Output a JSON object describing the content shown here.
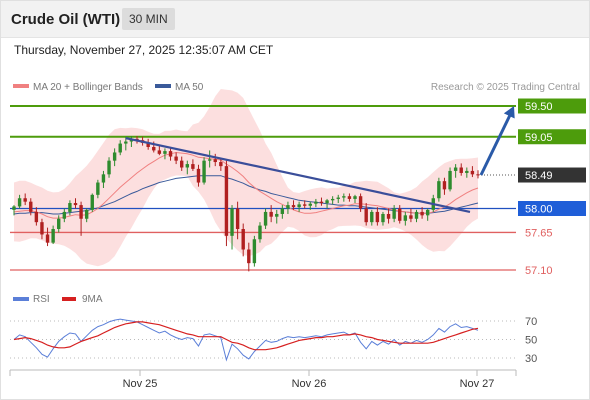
{
  "header": {
    "title": "Crude Oil (WTI)",
    "timeframe": "30 MIN"
  },
  "datetime": "Thursday, November 27, 2025 12:35:07 AM CET",
  "legend": {
    "ma20_label": "MA 20 + Bollinger Bands",
    "ma50_label": "MA 50",
    "credit": "Research © 2025 Trading Central"
  },
  "rsi_legend": {
    "rsi_label": "RSI",
    "ma_label": "9MA"
  },
  "colors": {
    "resistance": "#4d9c0c",
    "support": "#e06060",
    "pivot": "#2050c0",
    "trend": "#3a4e9a",
    "up": "#2e8b2e",
    "down": "#b02020",
    "ma20": "#f08080",
    "ma50": "#3a5a9a",
    "bands": "#fbd4d4",
    "current": "#333333",
    "rsi": "#5b7fd8",
    "rsi_ma": "#d62020"
  },
  "chart_data": [
    {
      "type": "candlestick",
      "title": "Crude Oil (WTI)",
      "timeframe": "30 MIN",
      "x_tick_labels": [
        "Nov 25",
        "Nov 26",
        "Nov 27"
      ],
      "levels": [
        {
          "value": 59.5,
          "label": "59.50",
          "kind": "resistance"
        },
        {
          "value": 59.05,
          "label": "59.05",
          "kind": "resistance"
        },
        {
          "value": 58.49,
          "label": "58.49",
          "kind": "current"
        },
        {
          "value": 58.0,
          "label": "58.00",
          "kind": "pivot"
        },
        {
          "value": 57.65,
          "label": "57.65",
          "kind": "support"
        },
        {
          "value": 57.1,
          "label": "57.10",
          "kind": "support"
        }
      ],
      "bias_arrow": {
        "from": 58.49,
        "to": 59.5,
        "direction": "up"
      },
      "downtrend_line": {
        "start": 59.03,
        "end": 57.95
      },
      "candles": [
        [
          57.98,
          58.05,
          57.9,
          58.03
        ],
        [
          58.03,
          58.2,
          58.0,
          58.15
        ],
        [
          58.15,
          58.22,
          58.05,
          58.1
        ],
        [
          58.1,
          58.15,
          57.9,
          57.95
        ],
        [
          57.95,
          58.02,
          57.75,
          57.8
        ],
        [
          57.8,
          57.85,
          57.55,
          57.62
        ],
        [
          57.62,
          57.72,
          57.45,
          57.5
        ],
        [
          57.5,
          57.75,
          57.48,
          57.7
        ],
        [
          57.7,
          57.9,
          57.65,
          57.85
        ],
        [
          57.85,
          58.0,
          57.8,
          57.95
        ],
        [
          57.95,
          58.12,
          57.9,
          58.08
        ],
        [
          58.08,
          58.15,
          58.0,
          58.05
        ],
        [
          58.05,
          58.1,
          57.6,
          57.85
        ],
        [
          57.85,
          58.0,
          57.8,
          57.98
        ],
        [
          57.98,
          58.22,
          57.95,
          58.2
        ],
        [
          58.2,
          58.42,
          58.15,
          58.38
        ],
        [
          58.38,
          58.55,
          58.3,
          58.5
        ],
        [
          58.5,
          58.75,
          58.45,
          58.7
        ],
        [
          58.7,
          58.88,
          58.62,
          58.82
        ],
        [
          58.82,
          59.0,
          58.78,
          58.95
        ],
        [
          58.95,
          59.05,
          58.85,
          58.98
        ],
        [
          58.98,
          59.06,
          58.9,
          59.02
        ],
        [
          59.02,
          59.06,
          58.95,
          59.0
        ],
        [
          59.0,
          59.05,
          58.92,
          58.96
        ],
        [
          58.96,
          59.02,
          58.86,
          58.9
        ],
        [
          58.9,
          58.98,
          58.82,
          58.85
        ],
        [
          58.85,
          58.92,
          58.78,
          58.8
        ],
        [
          58.8,
          58.88,
          58.72,
          58.84
        ],
        [
          58.84,
          58.9,
          58.7,
          58.76
        ],
        [
          58.76,
          58.82,
          58.65,
          58.7
        ],
        [
          58.7,
          58.76,
          58.55,
          58.6
        ],
        [
          58.6,
          58.7,
          58.5,
          58.65
        ],
        [
          58.65,
          58.72,
          58.55,
          58.58
        ],
        [
          58.58,
          58.64,
          58.32,
          58.38
        ],
        [
          58.38,
          58.75,
          58.35,
          58.7
        ],
        [
          58.7,
          58.85,
          58.6,
          58.72
        ],
        [
          58.72,
          58.8,
          58.62,
          58.68
        ],
        [
          58.68,
          58.74,
          58.55,
          58.62
        ],
        [
          58.62,
          58.7,
          57.45,
          57.6
        ],
        [
          57.6,
          58.05,
          57.4,
          58.0
        ],
        [
          58.0,
          58.1,
          57.55,
          57.7
        ],
        [
          57.7,
          57.78,
          57.3,
          57.4
        ],
        [
          57.4,
          57.5,
          57.08,
          57.2
        ],
        [
          57.2,
          57.6,
          57.15,
          57.55
        ],
        [
          57.55,
          57.8,
          57.5,
          57.75
        ],
        [
          57.75,
          58.0,
          57.7,
          57.95
        ],
        [
          57.95,
          58.05,
          57.8,
          57.88
        ],
        [
          57.88,
          57.98,
          57.78,
          57.92
        ],
        [
          57.92,
          58.05,
          57.85,
          58.0
        ],
        [
          58.0,
          58.1,
          57.92,
          58.05
        ],
        [
          58.05,
          58.12,
          57.98,
          58.02
        ],
        [
          58.02,
          58.1,
          57.95,
          58.06
        ],
        [
          58.06,
          58.12,
          58.0,
          58.04
        ],
        [
          58.04,
          58.1,
          57.98,
          58.07
        ],
        [
          58.07,
          58.14,
          58.02,
          58.1
        ],
        [
          58.1,
          58.16,
          58.04,
          58.08
        ],
        [
          58.08,
          58.14,
          58.0,
          58.12
        ],
        [
          58.12,
          58.18,
          58.06,
          58.14
        ],
        [
          58.14,
          58.2,
          58.08,
          58.16
        ],
        [
          58.16,
          58.22,
          58.1,
          58.18
        ],
        [
          58.18,
          58.22,
          58.1,
          58.14
        ],
        [
          58.14,
          58.2,
          58.08,
          58.18
        ],
        [
          58.18,
          58.22,
          57.95,
          58.0
        ],
        [
          58.0,
          58.08,
          57.75,
          57.8
        ],
        [
          57.8,
          57.98,
          57.75,
          57.95
        ],
        [
          57.95,
          58.02,
          57.75,
          57.8
        ],
        [
          57.8,
          57.95,
          57.75,
          57.92
        ],
        [
          57.92,
          58.0,
          57.78,
          57.85
        ],
        [
          57.85,
          58.05,
          57.8,
          58.0
        ],
        [
          58.0,
          58.05,
          57.78,
          57.82
        ],
        [
          57.82,
          57.95,
          57.75,
          57.9
        ],
        [
          57.9,
          58.0,
          57.8,
          57.85
        ],
        [
          57.85,
          57.98,
          57.8,
          57.95
        ],
        [
          57.95,
          58.02,
          57.85,
          57.9
        ],
        [
          57.9,
          58.0,
          57.82,
          57.98
        ],
        [
          57.98,
          58.2,
          57.95,
          58.15
        ],
        [
          58.15,
          58.45,
          58.1,
          58.4
        ],
        [
          58.4,
          58.45,
          58.2,
          58.28
        ],
        [
          58.28,
          58.6,
          58.25,
          58.55
        ],
        [
          58.55,
          58.65,
          58.45,
          58.6
        ],
        [
          58.6,
          58.66,
          58.48,
          58.52
        ],
        [
          58.52,
          58.6,
          58.45,
          58.55
        ],
        [
          58.55,
          58.62,
          58.46,
          58.5
        ],
        [
          58.5,
          58.56,
          58.44,
          58.49
        ]
      ],
      "ma20": [
        57.95,
        57.96,
        57.97,
        57.97,
        57.95,
        57.92,
        57.88,
        57.86,
        57.86,
        57.87,
        57.89,
        57.91,
        57.9,
        57.91,
        57.95,
        58.0,
        58.07,
        58.15,
        58.23,
        58.31,
        58.38,
        58.45,
        58.52,
        58.58,
        58.64,
        58.69,
        58.74,
        58.78,
        58.8,
        58.82,
        58.81,
        58.8,
        58.78,
        58.75,
        58.74,
        58.73,
        58.72,
        58.71,
        58.65,
        58.6,
        58.54,
        58.47,
        58.38,
        58.31,
        58.25,
        58.2,
        58.15,
        58.1,
        58.06,
        58.02,
        57.98,
        57.95,
        57.93,
        57.93,
        57.94,
        57.96,
        57.98,
        58.0,
        58.02,
        58.04,
        58.05,
        58.07,
        58.07,
        58.06,
        58.05,
        58.04,
        58.02,
        58.0,
        57.98,
        57.96,
        57.95,
        57.94,
        57.93,
        57.93,
        57.93,
        57.95,
        57.99,
        58.02,
        58.07,
        58.13,
        58.18,
        58.23,
        58.27,
        58.3
      ],
      "ma50": [
        57.92,
        57.93,
        57.93,
        57.94,
        57.94,
        57.94,
        57.93,
        57.92,
        57.92,
        57.93,
        57.94,
        57.95,
        57.96,
        57.97,
        57.99,
        58.01,
        58.04,
        58.07,
        58.1,
        58.14,
        58.18,
        58.22,
        58.25,
        58.29,
        58.32,
        58.35,
        58.38,
        58.4,
        58.42,
        58.44,
        58.45,
        58.46,
        58.47,
        58.48,
        58.48,
        58.48,
        58.48,
        58.48,
        58.45,
        58.43,
        58.4,
        58.37,
        58.33,
        58.3,
        58.27,
        58.25,
        58.22,
        58.2,
        58.18,
        58.16,
        58.14,
        58.12,
        58.11,
        58.1,
        58.09,
        58.08,
        58.07,
        58.06,
        58.05,
        58.05,
        58.04,
        58.04,
        58.03,
        58.02,
        58.01,
        58.0,
        57.99,
        57.98,
        57.97,
        57.96,
        57.95,
        57.94,
        57.93,
        57.93,
        57.93,
        57.94,
        57.95,
        57.96,
        57.98,
        58.0,
        58.02,
        58.04,
        58.06,
        58.08
      ]
    },
    {
      "type": "line",
      "title": "RSI",
      "ylim": [
        20,
        80
      ],
      "y_tick_labels": [
        "70",
        "50",
        "30"
      ],
      "series": [
        {
          "name": "RSI",
          "values": [
            50,
            55,
            53,
            47,
            41,
            34,
            31,
            40,
            48,
            53,
            57,
            56,
            48,
            54,
            60,
            64,
            66,
            69,
            71,
            72,
            71,
            70,
            69,
            66,
            63,
            60,
            57,
            59,
            55,
            52,
            50,
            52,
            51,
            43,
            55,
            56,
            54,
            52,
            28,
            45,
            40,
            33,
            29,
            37,
            43,
            49,
            47,
            48,
            51,
            53,
            52,
            53,
            52,
            53,
            54,
            53,
            55,
            56,
            57,
            58,
            55,
            57,
            47,
            40,
            48,
            44,
            48,
            45,
            50,
            44,
            48,
            46,
            49,
            47,
            50,
            55,
            62,
            58,
            64,
            67,
            63,
            64,
            62,
            60
          ]
        },
        {
          "name": "9MA",
          "values": [
            50,
            51,
            52,
            51,
            49,
            47,
            44,
            42,
            41,
            41,
            42,
            45,
            48,
            50,
            52,
            54,
            57,
            60,
            63,
            65,
            67,
            68,
            69,
            69,
            68,
            67,
            66,
            64,
            62,
            60,
            58,
            56,
            55,
            53,
            53,
            53,
            53,
            53,
            50,
            47,
            46,
            44,
            41,
            39,
            39,
            39,
            40,
            41,
            43,
            45,
            47,
            49,
            50,
            51,
            52,
            52,
            53,
            53,
            54,
            55,
            55,
            56,
            55,
            53,
            52,
            50,
            49,
            48,
            47,
            46,
            46,
            46,
            46,
            46,
            46,
            47,
            49,
            51,
            53,
            55,
            57,
            59,
            61,
            62
          ]
        }
      ]
    }
  ]
}
